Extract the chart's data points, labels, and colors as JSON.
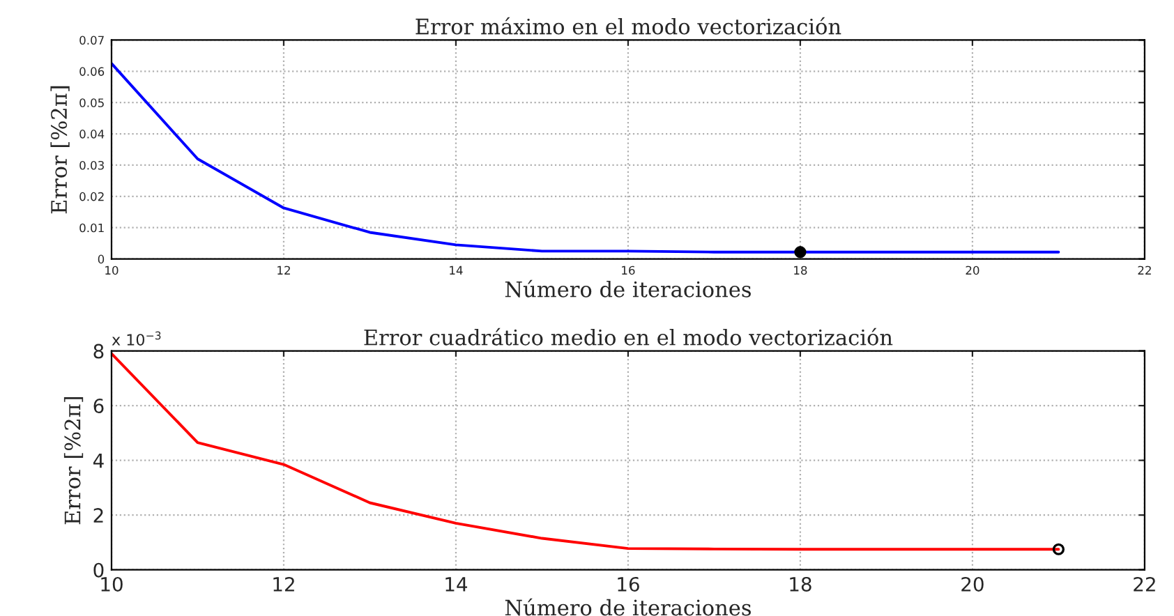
{
  "chart_data": [
    {
      "type": "line",
      "title": "Error máximo en el modo vectorización",
      "xlabel": "Número de iteraciones",
      "ylabel": "Error [%2π]",
      "x": [
        10,
        11,
        12,
        13,
        14,
        15,
        16,
        17,
        18,
        19,
        20,
        21
      ],
      "series": [
        {
          "color": "#0000ff",
          "values": [
            0.0625,
            0.032,
            0.0163,
            0.0085,
            0.0045,
            0.0025,
            0.0025,
            0.0022,
            0.0022,
            0.0022,
            0.0022,
            0.0022
          ]
        },
        {
          "type": "scatter",
          "color": "#000000",
          "x": [
            18
          ],
          "values": [
            0.0022
          ],
          "marker": "circle"
        }
      ],
      "xlim": [
        10,
        22
      ],
      "xticks": [
        10,
        12,
        14,
        16,
        18,
        20,
        22
      ],
      "ylim": [
        0,
        0.07
      ],
      "yticks": [
        0,
        0.01,
        0.02,
        0.03,
        0.04,
        0.05,
        0.06,
        0.07
      ],
      "grid": true,
      "line_style": "solid"
    },
    {
      "type": "line",
      "title": "Error cuadrático medio en el modo vectorización",
      "xlabel": "Número de iteraciones",
      "ylabel": "Error [%2π]",
      "annotations": [
        "x 10$^{−3}$"
      ],
      "x": [
        10,
        11,
        12,
        13,
        14,
        15,
        16,
        17,
        18,
        19,
        20,
        21
      ],
      "series": [
        {
          "color": "#ff0000",
          "values": [
            7.9,
            4.65,
            3.85,
            2.45,
            1.7,
            1.15,
            0.78,
            0.76,
            0.75,
            0.75,
            0.75,
            0.75
          ]
        },
        {
          "type": "scatter",
          "color": "#000000",
          "x": [
            21
          ],
          "values": [
            0.75
          ],
          "marker": "circle"
        }
      ],
      "xlim": [
        10,
        22
      ],
      "xticks": [
        10,
        12,
        14,
        16,
        18,
        20,
        22
      ],
      "ylim": [
        0,
        8
      ],
      "yticks": [
        0,
        2,
        4,
        6,
        8
      ],
      "grid": true,
      "line_style": "solid"
    }
  ]
}
